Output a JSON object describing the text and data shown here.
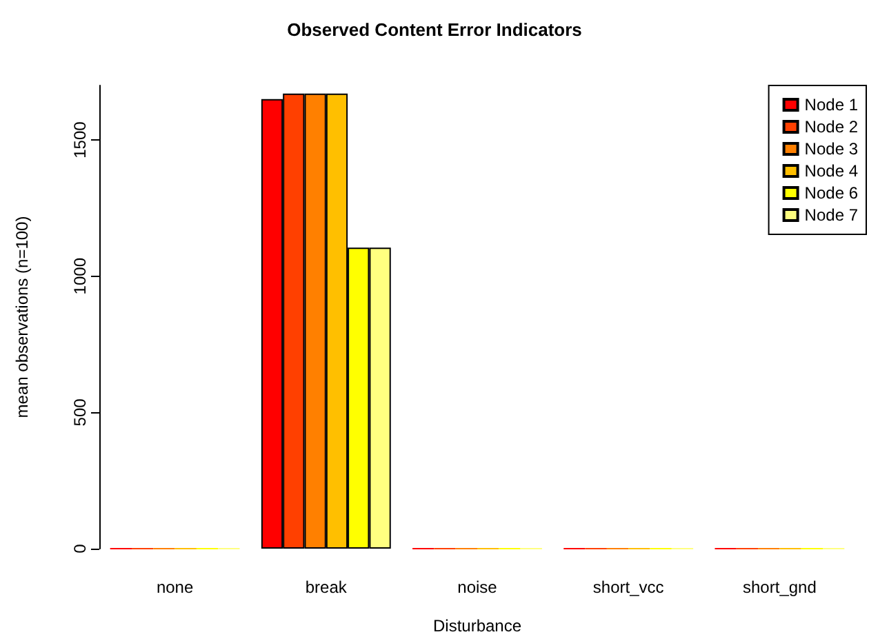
{
  "chart_data": {
    "type": "bar",
    "title": "Observed Content Error Indicators",
    "xlabel": "Disturbance",
    "ylabel": "mean observations (n=100)",
    "categories": [
      "none",
      "break",
      "noise",
      "short_vcc",
      "short_gnd"
    ],
    "series": [
      {
        "name": "Node 1",
        "color": "#ff0000",
        "values": [
          0,
          1650,
          0,
          0,
          0
        ]
      },
      {
        "name": "Node 2",
        "color": "#ff4000",
        "values": [
          0,
          1670,
          0,
          0,
          0
        ]
      },
      {
        "name": "Node 3",
        "color": "#ff8000",
        "values": [
          0,
          1670,
          0,
          0,
          0
        ]
      },
      {
        "name": "Node 4",
        "color": "#ffbf00",
        "values": [
          0,
          1670,
          0,
          0,
          0
        ]
      },
      {
        "name": "Node 6",
        "color": "#ffff00",
        "values": [
          0,
          1105,
          0,
          0,
          0
        ]
      },
      {
        "name": "Node 7",
        "color": "#ffff80",
        "values": [
          0,
          1105,
          0,
          0,
          0
        ]
      }
    ],
    "ylim": [
      0,
      1700
    ],
    "yticks": [
      0,
      500,
      1000,
      1500
    ],
    "grid": false,
    "legend": "top right"
  }
}
